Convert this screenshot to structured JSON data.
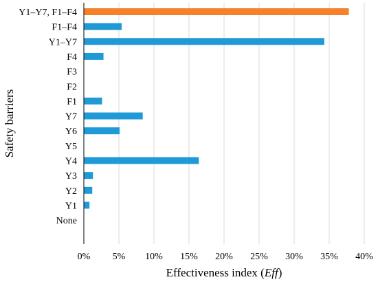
{
  "chart_data": {
    "type": "bar",
    "orientation": "horizontal",
    "categories": [
      "Y1–Y7, F1–F4",
      "F1–F4",
      "Y1–Y7",
      "F4",
      "F3",
      "F2",
      "F1",
      "Y7",
      "Y6",
      "Y5",
      "Y4",
      "Y3",
      "Y2",
      "Y1",
      "None"
    ],
    "values": [
      37.8,
      5.4,
      34.3,
      2.8,
      0,
      0,
      2.6,
      8.4,
      5.1,
      0,
      16.4,
      1.3,
      1.2,
      0.8,
      0
    ],
    "highlight_index": 0,
    "colors": {
      "bar": "#1f9ad6",
      "highlight": "#f5812a",
      "grid": "#d9d9d9",
      "axis": "#000000"
    },
    "xlim": [
      0,
      40
    ],
    "xticks": [
      0,
      5,
      10,
      15,
      20,
      25,
      30,
      35,
      40
    ],
    "xtick_labels": [
      "0%",
      "5%",
      "10%",
      "15%",
      "20%",
      "25%",
      "30%",
      "35%",
      "40%"
    ],
    "grid": "vertical",
    "xlabel": {
      "prefix": "Effectiveness index (",
      "em": "Eff",
      "suffix": ")"
    },
    "ylabel": "Safety barriers",
    "title": ""
  }
}
